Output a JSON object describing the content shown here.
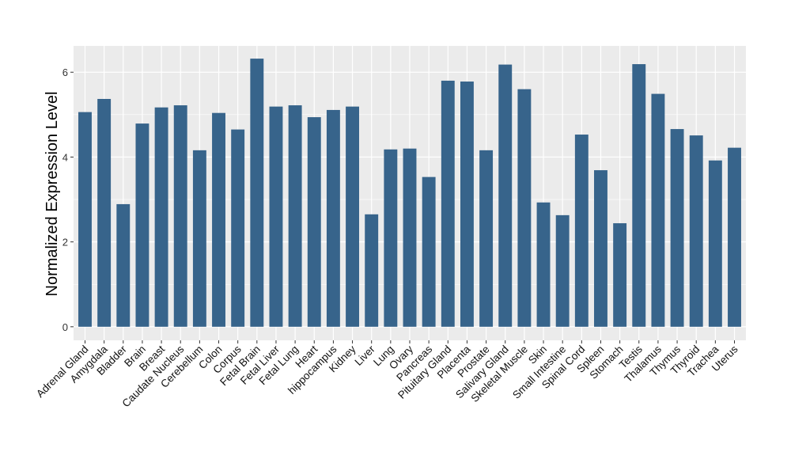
{
  "chart_data": {
    "type": "bar",
    "title": "",
    "xlabel": "",
    "ylabel": "Normalized Expression Level",
    "ylim": [
      -0.32,
      6.62
    ],
    "yticks": [
      0,
      2,
      4,
      6
    ],
    "grid": true,
    "bar_color": "#37648B",
    "panel_color": "#EBEBEB",
    "categories": [
      "Adrenal Gland",
      "Amygdala",
      "Bladder",
      "Brain",
      "Breast",
      "Caudate Nucleus",
      "Cerebellum",
      "Colon",
      "Corpus",
      "Fetal Brain",
      "Fetal Liver",
      "Fetal Lung",
      "Heart",
      "hippocampus",
      "Kidney",
      "Liver",
      "Lung",
      "Ovary",
      "Pancreas",
      "Pituitary Gland",
      "Placenta",
      "Prostate",
      "Salivary Gland",
      "Skeletal Muscle",
      "Skin",
      "Small Intestine",
      "Spinal Cord",
      "Spleen",
      "Stomach",
      "Testis",
      "Thalamus",
      "Thymus",
      "Thyroid",
      "Trachea",
      "Uterus"
    ],
    "values": [
      5.06,
      5.37,
      2.89,
      4.79,
      5.17,
      5.22,
      4.16,
      5.04,
      4.65,
      6.32,
      5.19,
      5.22,
      4.94,
      5.11,
      5.19,
      2.65,
      4.18,
      4.2,
      3.53,
      5.8,
      5.78,
      4.16,
      6.18,
      5.6,
      2.93,
      2.63,
      4.53,
      3.69,
      2.44,
      6.19,
      5.49,
      4.66,
      4.51,
      3.92,
      4.22
    ]
  }
}
